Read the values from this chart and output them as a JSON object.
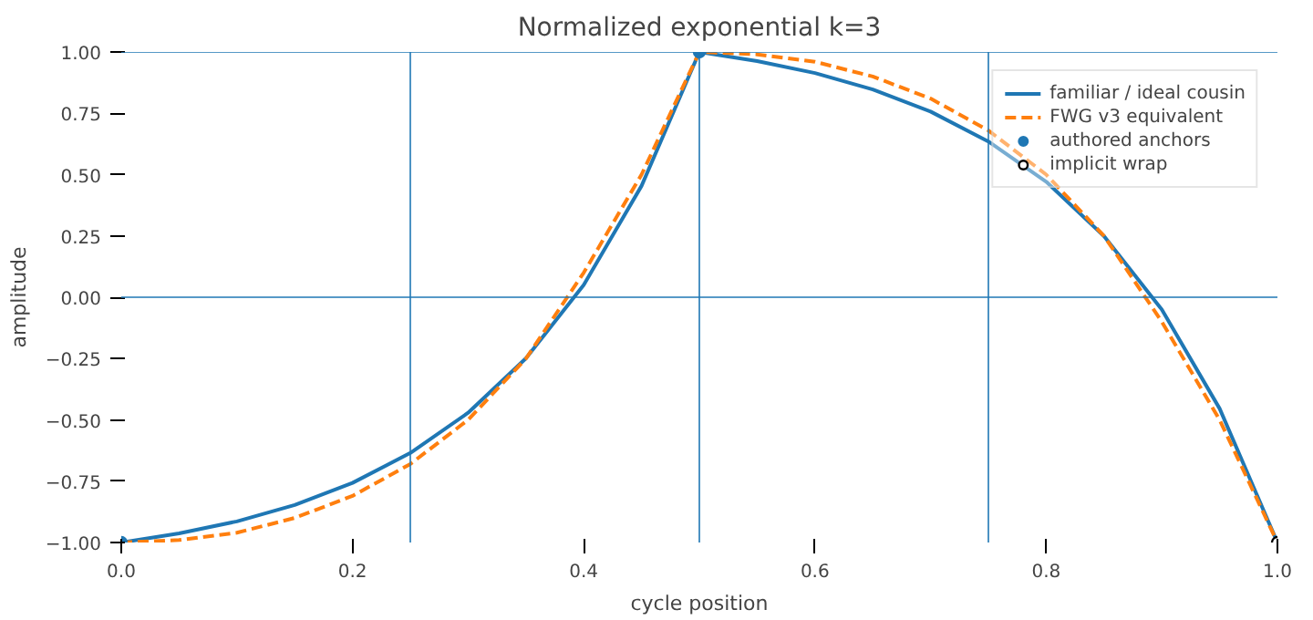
{
  "chart_data": {
    "type": "line",
    "title": "Normalized exponential k=3",
    "xlabel": "cycle position",
    "ylabel": "amplitude",
    "xlim": [
      0,
      1
    ],
    "xticks": [
      {
        "value": 0,
        "label": "0.0"
      },
      0.2,
      0.4,
      0.6,
      0.8,
      {
        "value": 1,
        "label": "1.0"
      }
    ],
    "ylim": [
      -1,
      1
    ],
    "yticks": [
      {
        "value": -1,
        "label": "−1.00"
      },
      {
        "value": -0.75,
        "label": "−0.75"
      },
      {
        "value": -0.5,
        "label": "−0.50"
      },
      {
        "value": -0.25,
        "label": "−0.25"
      },
      {
        "value": 0,
        "label": "0.00"
      },
      {
        "value": 0.25,
        "label": "0.25"
      },
      {
        "value": 0.5,
        "label": "0.50"
      },
      {
        "value": 0.75,
        "label": "0.75"
      },
      {
        "value": 1,
        "label": "1.00"
      }
    ],
    "x": [
      0,
      0.05,
      0.1,
      0.15,
      0.2,
      0.25,
      0.3,
      0.35,
      0.4,
      0.45,
      0.5,
      0.55,
      0.6,
      0.65,
      0.7,
      0.75,
      0.8,
      0.85,
      0.9,
      0.95,
      1
    ],
    "grid": false,
    "legend": "top right",
    "series": [
      {
        "name": "familiar / ideal cousin",
        "color": "#1f77b4",
        "line_style": "solid",
        "values": [
          -1,
          -0.963,
          -0.914,
          -0.847,
          -0.757,
          -0.635,
          -0.471,
          -0.249,
          0.05,
          0.454,
          1,
          0.963,
          0.914,
          0.847,
          0.757,
          0.635,
          0.471,
          0.249,
          -0.05,
          -0.454,
          -1
        ]
      },
      {
        "name": "FWG v3 equivalent",
        "color": "#ff7f0e",
        "line_style": "dashed",
        "values": [
          -1,
          -0.99,
          -0.96,
          -0.9,
          -0.81,
          -0.68,
          -0.5,
          -0.25,
          0.1,
          0.5,
          1,
          0.99,
          0.96,
          0.9,
          0.81,
          0.68,
          0.5,
          0.25,
          -0.1,
          -0.5,
          -1
        ]
      },
      {
        "name": "authored anchors",
        "type": "scatter",
        "marker": "circle",
        "color": "#1f77b4",
        "x": [
          0,
          0.5
        ],
        "values": [
          -1,
          1
        ]
      },
      {
        "name": "implicit wrap",
        "type": "scatter",
        "marker": "circle",
        "color": "#ffffff",
        "x": [
          1
        ],
        "values": [
          -1
        ]
      }
    ],
    "ref_lines": [
      {
        "axis": "x",
        "value": 0.25,
        "color": "#1f77b4"
      },
      {
        "axis": "x",
        "value": 0.5,
        "color": "#1f77b4"
      },
      {
        "axis": "x",
        "value": 0.75,
        "color": "#1f77b4"
      },
      {
        "axis": "y",
        "value": 0,
        "color": "#1f77b4"
      },
      {
        "axis": "y",
        "value": 1,
        "color": "#1f77b4"
      }
    ]
  }
}
